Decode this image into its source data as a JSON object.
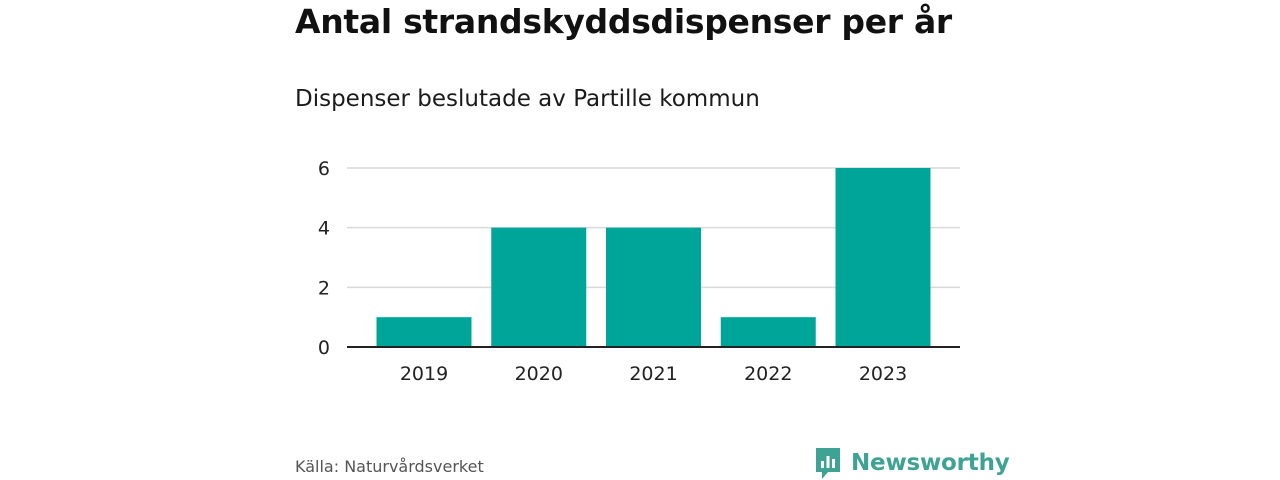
{
  "header": {
    "title": "Antal strandskyddsdispenser per år",
    "subtitle": "Dispenser beslutade av Partille kommun"
  },
  "footer": {
    "source": "Källa: Naturvårdsverket",
    "brand": "Newsworthy"
  },
  "colors": {
    "bar": "#00a59a",
    "grid": "#d9d9d9",
    "axis": "#222222",
    "brand": "#3ea394"
  },
  "chart_data": {
    "type": "bar",
    "title": "Antal strandskyddsdispenser per år",
    "subtitle": "Dispenser beslutade av Partille kommun",
    "xlabel": "",
    "ylabel": "",
    "categories": [
      "2019",
      "2020",
      "2021",
      "2022",
      "2023"
    ],
    "values": [
      1,
      4,
      4,
      1,
      6
    ],
    "ylim": [
      0,
      6
    ],
    "yticks": [
      0,
      2,
      4,
      6
    ],
    "grid": true,
    "legend": "none"
  }
}
